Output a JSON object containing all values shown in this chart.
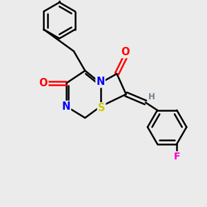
{
  "background_color": "#ebebeb",
  "bond_color": "#000000",
  "bond_width": 1.8,
  "atom_colors": {
    "N": "#0000ff",
    "O": "#ff0000",
    "S": "#cccc00",
    "F": "#ff00cc",
    "H": "#708090",
    "C": "#000000"
  },
  "figsize": [
    3.0,
    3.0
  ],
  "dpi": 100
}
